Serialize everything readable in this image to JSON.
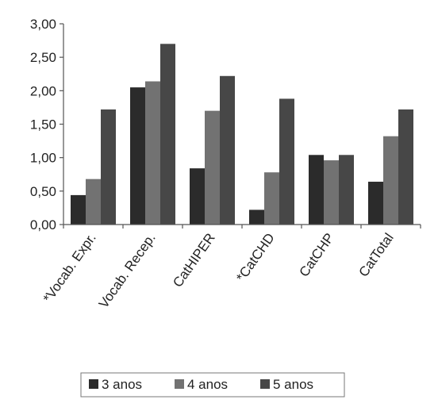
{
  "chart_data": {
    "type": "bar",
    "title": "",
    "xlabel": "",
    "ylabel": "",
    "categories": [
      "*Vocab. Expr.",
      "Vocab. Recep.",
      "CatHIPER",
      "*CatCHD",
      "CatCHP",
      "CatTotal"
    ],
    "series": [
      {
        "name": "3 anos",
        "color": "#2b2b2b",
        "values": [
          0.44,
          2.05,
          0.84,
          0.22,
          1.04,
          0.64
        ]
      },
      {
        "name": "4 anos",
        "color": "#727272",
        "values": [
          0.68,
          2.14,
          1.7,
          0.78,
          0.96,
          1.32
        ]
      },
      {
        "name": "5 anos",
        "color": "#474747",
        "values": [
          1.72,
          2.7,
          2.22,
          1.88,
          1.04,
          1.72
        ]
      }
    ],
    "ylim": [
      0,
      3
    ],
    "yticks": [
      "0,00",
      "0,50",
      "1,00",
      "1,50",
      "2,00",
      "2,50",
      "3,00"
    ],
    "grid": false,
    "legend_position": "bottom"
  }
}
